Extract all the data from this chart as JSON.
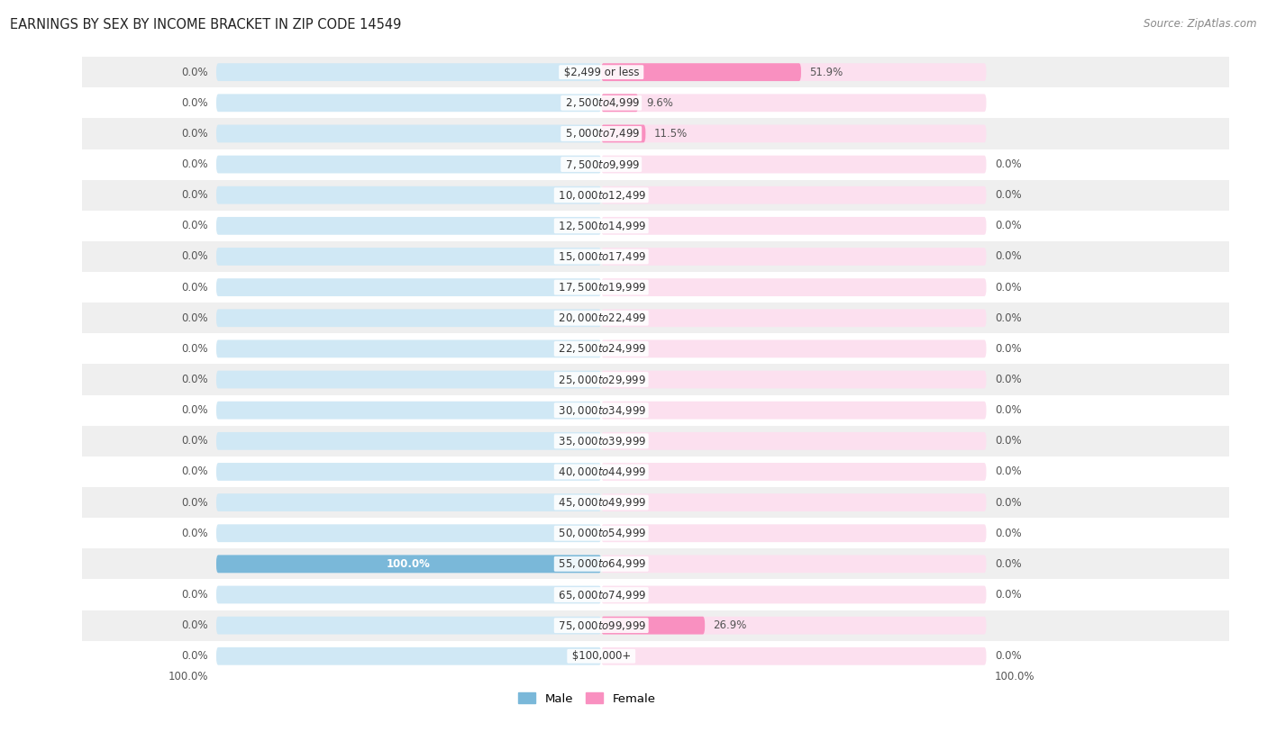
{
  "title": "EARNINGS BY SEX BY INCOME BRACKET IN ZIP CODE 14549",
  "source": "Source: ZipAtlas.com",
  "categories": [
    "$2,499 or less",
    "$2,500 to $4,999",
    "$5,000 to $7,499",
    "$7,500 to $9,999",
    "$10,000 to $12,499",
    "$12,500 to $14,999",
    "$15,000 to $17,499",
    "$17,500 to $19,999",
    "$20,000 to $22,499",
    "$22,500 to $24,999",
    "$25,000 to $29,999",
    "$30,000 to $34,999",
    "$35,000 to $39,999",
    "$40,000 to $44,999",
    "$45,000 to $49,999",
    "$50,000 to $54,999",
    "$55,000 to $64,999",
    "$65,000 to $74,999",
    "$75,000 to $99,999",
    "$100,000+"
  ],
  "male_values": [
    0.0,
    0.0,
    0.0,
    0.0,
    0.0,
    0.0,
    0.0,
    0.0,
    0.0,
    0.0,
    0.0,
    0.0,
    0.0,
    0.0,
    0.0,
    0.0,
    100.0,
    0.0,
    0.0,
    0.0
  ],
  "female_values": [
    51.9,
    9.6,
    11.5,
    0.0,
    0.0,
    0.0,
    0.0,
    0.0,
    0.0,
    0.0,
    0.0,
    0.0,
    0.0,
    0.0,
    0.0,
    0.0,
    0.0,
    0.0,
    26.9,
    0.0
  ],
  "male_color": "#7ab8d9",
  "female_color": "#f990c0",
  "bar_bg_male": "#d0e8f5",
  "bar_bg_female": "#fce0ef",
  "row_bg_odd": "#efefef",
  "row_bg_even": "#ffffff",
  "max_value": 100.0,
  "title_fontsize": 10.5,
  "source_fontsize": 8.5,
  "label_fontsize": 8.5,
  "cat_fontsize": 8.5
}
